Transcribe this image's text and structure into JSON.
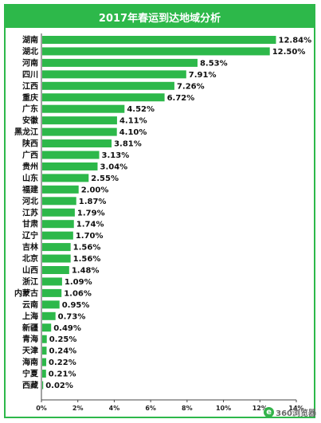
{
  "chart_data": {
    "type": "bar",
    "orientation": "horizontal",
    "title": "2017年春运到达地域分析",
    "categories": [
      "湖南",
      "湖北",
      "河南",
      "四川",
      "江西",
      "重庆",
      "广东",
      "安徽",
      "黑龙江",
      "陕西",
      "广西",
      "贵州",
      "山东",
      "福建",
      "河北",
      "江苏",
      "甘肃",
      "辽宁",
      "吉林",
      "北京",
      "山西",
      "浙江",
      "内蒙古",
      "云南",
      "上海",
      "新疆",
      "青海",
      "天津",
      "海南",
      "宁夏",
      "西藏"
    ],
    "values": [
      12.84,
      12.5,
      8.53,
      7.91,
      7.26,
      6.72,
      4.52,
      4.11,
      4.1,
      3.81,
      3.13,
      3.04,
      2.55,
      2.0,
      1.87,
      1.79,
      1.74,
      1.7,
      1.56,
      1.56,
      1.48,
      1.09,
      1.06,
      0.95,
      0.73,
      0.49,
      0.25,
      0.24,
      0.22,
      0.21,
      0.02
    ],
    "value_labels": [
      "12.84%",
      "12.50%",
      "8.53%",
      "7.91%",
      "7.26%",
      "6.72%",
      "4.52%",
      "4.11%",
      "4.10%",
      "3.81%",
      "3.13%",
      "3.04%",
      "2.55%",
      "2.00%",
      "1.87%",
      "1.79%",
      "1.74%",
      "1.70%",
      "1.56%",
      "1.56%",
      "1.48%",
      "1.09%",
      "1.06%",
      "0.95%",
      "0.73%",
      "0.49%",
      "0.25%",
      "0.24%",
      "0.22%",
      "0.21%",
      "0.02%"
    ],
    "xlim": [
      0,
      14
    ],
    "xticks": [
      0,
      2,
      4,
      6,
      8,
      10,
      12,
      14
    ],
    "xtick_labels": [
      "0%",
      "2%",
      "4%",
      "6%",
      "8%",
      "10%",
      "12%",
      "14%"
    ],
    "grid": false,
    "bar_color": "#2db84a",
    "accent_color": "#2db84a"
  },
  "watermark": {
    "icon": "e-browser-icon",
    "text": "360浏览器"
  }
}
